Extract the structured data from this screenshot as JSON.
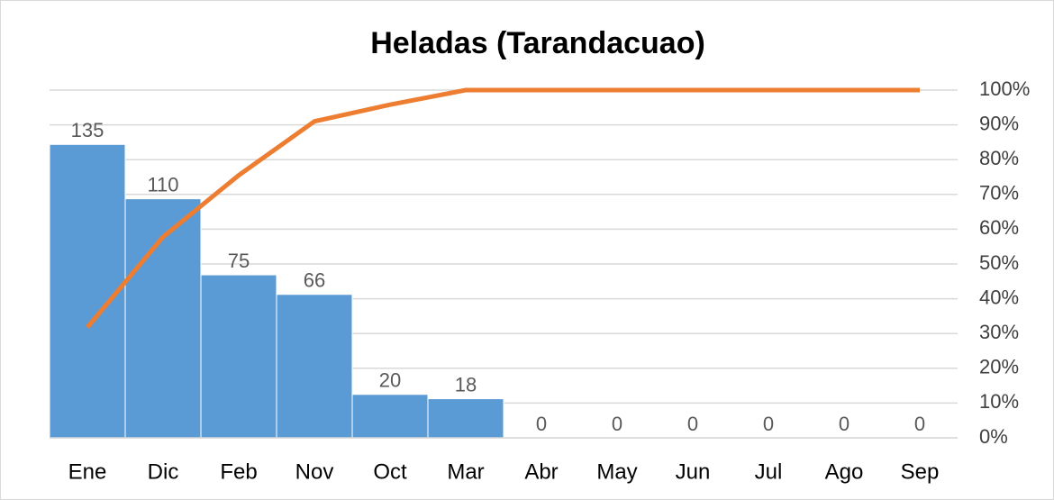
{
  "chart_data": {
    "type": "pareto",
    "title": "Heladas (Tarandacuao)",
    "categories": [
      "Ene",
      "Dic",
      "Feb",
      "Nov",
      "Oct",
      "Mar",
      "Abr",
      "May",
      "Jun",
      "Jul",
      "Ago",
      "Sep"
    ],
    "series": [
      {
        "type": "bar",
        "color": "#5b9bd5",
        "values": [
          135,
          110,
          75,
          66,
          20,
          18,
          0,
          0,
          0,
          0,
          0,
          0
        ]
      },
      {
        "type": "line",
        "color": "#ed7d31",
        "axis": "y2",
        "values": [
          31.8,
          57.8,
          75.5,
          91.0,
          95.8,
          100,
          100,
          100,
          100,
          100,
          100,
          100
        ]
      }
    ],
    "ylim": [
      0,
      160
    ],
    "y2lim": [
      0,
      100
    ],
    "y2ticks": [
      {
        "value": 0,
        "label": "0%"
      },
      {
        "value": 10,
        "label": "10%"
      },
      {
        "value": 20,
        "label": "20%"
      },
      {
        "value": 30,
        "label": "30%"
      },
      {
        "value": 40,
        "label": "40%"
      },
      {
        "value": 50,
        "label": "50%"
      },
      {
        "value": 60,
        "label": "60%"
      },
      {
        "value": 70,
        "label": "70%"
      },
      {
        "value": 80,
        "label": "80%"
      },
      {
        "value": 90,
        "label": "90%"
      },
      {
        "value": 100,
        "label": "100%"
      }
    ],
    "grid": true
  }
}
